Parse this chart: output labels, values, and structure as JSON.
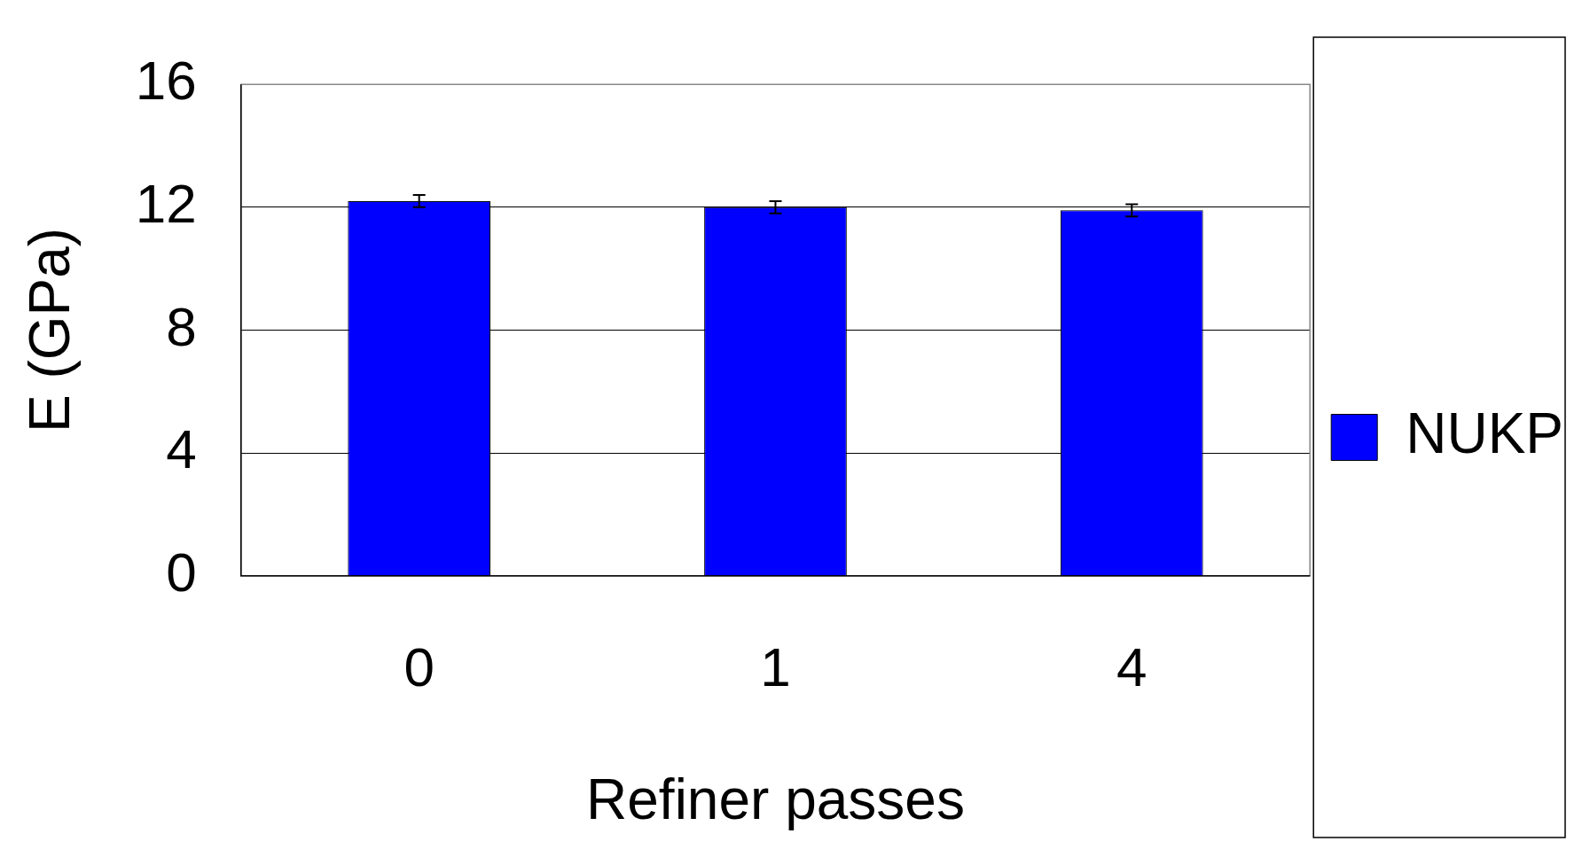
{
  "chart_data": {
    "type": "bar",
    "xlabel": "Refiner passes",
    "ylabel": "E (GPa)",
    "categories": [
      "0",
      "1",
      "4"
    ],
    "series": [
      {
        "name": "NUKP",
        "color": "#0000ff",
        "values": [
          12.2,
          12.0,
          11.9
        ],
        "errors": [
          0.2,
          0.2,
          0.2
        ]
      }
    ],
    "ylim": [
      0,
      16
    ],
    "yticks": [
      0,
      4,
      8,
      12,
      16
    ],
    "grid": "y",
    "legend": "right"
  }
}
